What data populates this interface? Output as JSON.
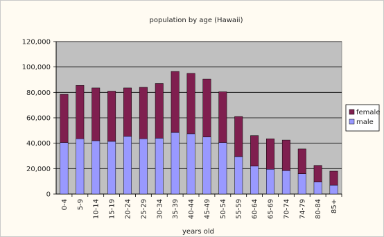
{
  "chart_data": {
    "type": "bar",
    "stacked": true,
    "title": "population by age (Hawaii)",
    "xlabel": "years old",
    "ylabel": "",
    "categories": [
      "0-4",
      "5-9",
      "10-14",
      "15-19",
      "20-24",
      "25-29",
      "30-34",
      "35-39",
      "40-44",
      "45-49",
      "50-54",
      "55-59",
      "60-64",
      "65-69",
      "70-74",
      "74-79",
      "80-84",
      "85+"
    ],
    "series": [
      {
        "name": "male",
        "color": "#9999ff",
        "values": [
          40500,
          43500,
          42000,
          41500,
          45500,
          43500,
          44000,
          48500,
          47500,
          45000,
          40500,
          29500,
          22000,
          19500,
          18500,
          16000,
          9500,
          7000
        ]
      },
      {
        "name": "female",
        "color": "#7f1f4f",
        "values": [
          38000,
          42000,
          41500,
          39500,
          38000,
          40500,
          43000,
          48000,
          47500,
          45500,
          40000,
          31500,
          24000,
          24000,
          24000,
          19500,
          13000,
          11000
        ]
      }
    ],
    "ylim": [
      0,
      120000
    ],
    "yticks": [
      "0",
      "20,000",
      "40,000",
      "60,000",
      "80,000",
      "100,000",
      "120,000"
    ],
    "grid": true,
    "legend": "right",
    "legend_entries": [
      "female",
      "male"
    ],
    "plot_background": "#c0c0c0"
  }
}
